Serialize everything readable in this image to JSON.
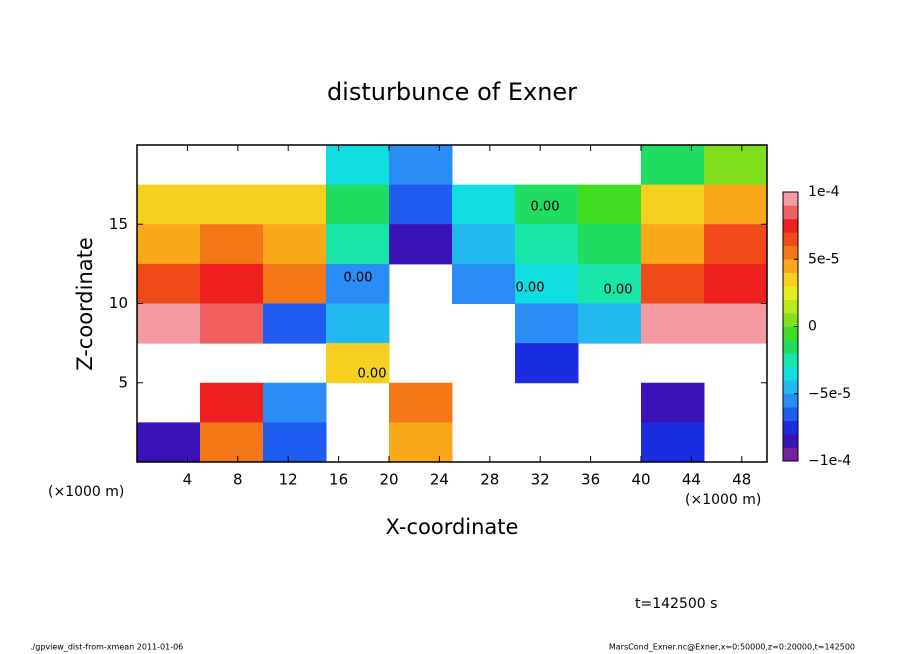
{
  "chart_data": {
    "type": "heatmap",
    "title": "disturbunce of Exner",
    "xlabel": "X-coordinate",
    "ylabel": "Z-coordinate",
    "x_unit_left": "(×1000 m)",
    "x_unit_right": "(×1000 m)",
    "time_label": "t=142500 s",
    "footer_left": "./gpview_dist-from-xmean  2011-01-06",
    "footer_right": "MarsCond_Exner.nc@Exner,x=0:50000,z=0:20000,t=142500",
    "xlim": [
      0,
      50
    ],
    "ylim": [
      0,
      20
    ],
    "xticks": [
      4,
      8,
      12,
      16,
      20,
      24,
      28,
      32,
      36,
      40,
      44,
      48
    ],
    "yticks": [
      5,
      10,
      15
    ],
    "x": [
      2.5,
      7.5,
      12.5,
      17.5,
      22.5,
      27.5,
      32.5,
      37.5,
      42.5,
      47.5
    ],
    "y": [
      18.75,
      16.25,
      13.75,
      11.25,
      8.75,
      6.25,
      3.75,
      1.25
    ],
    "z": [
      [
        null,
        null,
        null,
        -4e-05,
        -6e-05,
        null,
        null,
        null,
        -2e-05,
        0
      ],
      [
        3e-05,
        3e-05,
        3e-05,
        -2e-05,
        -7e-05,
        -4e-05,
        -2e-05,
        -1e-05,
        3e-05,
        4e-05
      ],
      [
        4e-05,
        5e-05,
        4e-05,
        -3e-05,
        -9e-05,
        -5e-05,
        -3e-05,
        -2e-05,
        4e-05,
        6e-05
      ],
      [
        6e-05,
        7e-05,
        5e-05,
        -6e-05,
        null,
        -6e-05,
        -4e-05,
        -3e-05,
        6e-05,
        7e-05
      ],
      [
        9e-05,
        8e-05,
        -7e-05,
        -5e-05,
        null,
        null,
        -6e-05,
        -5e-05,
        9e-05,
        9e-05
      ],
      [
        null,
        null,
        null,
        3e-05,
        null,
        null,
        -8e-05,
        null,
        null,
        null
      ],
      [
        null,
        7e-05,
        -6e-05,
        null,
        5e-05,
        null,
        null,
        null,
        -9e-05,
        null
      ],
      [
        -9e-05,
        5e-05,
        -7e-05,
        null,
        4e-05,
        null,
        null,
        null,
        -8e-05,
        null
      ]
    ],
    "levels": [
      -0.0001,
      -9e-05,
      -8e-05,
      -7e-05,
      -6e-05,
      -5e-05,
      -4e-05,
      -3e-05,
      -2e-05,
      -1e-05,
      0,
      1e-05,
      2e-05,
      3e-05,
      4e-05,
      5e-05,
      6e-05,
      7e-05,
      8e-05,
      9e-05,
      0.0001
    ],
    "colors": [
      "#7a1fa0",
      "#3a12b8",
      "#1a2ee0",
      "#1f5cf0",
      "#2a8cf5",
      "#22b8f0",
      "#10dde0",
      "#18e6a8",
      "#20dc60",
      "#40dc20",
      "#80e020",
      "#b8e81e",
      "#e6ee20",
      "#f6d020",
      "#f8a818",
      "#f47818",
      "#f04a18",
      "#ee2020",
      "#f06060",
      "#f49aa0"
    ],
    "colorbar_ticks": [
      {
        "value": 0.0001,
        "label": "1e-4"
      },
      {
        "value": 5e-05,
        "label": "5e-5"
      },
      0,
      {
        "value": -5e-05,
        "label": "−5e-5"
      },
      {
        "value": -0.0001,
        "label": "−1e-4"
      }
    ],
    "contour_labels": [
      "0.00",
      "0.00",
      "0.00",
      "0.00",
      "0.00"
    ]
  }
}
